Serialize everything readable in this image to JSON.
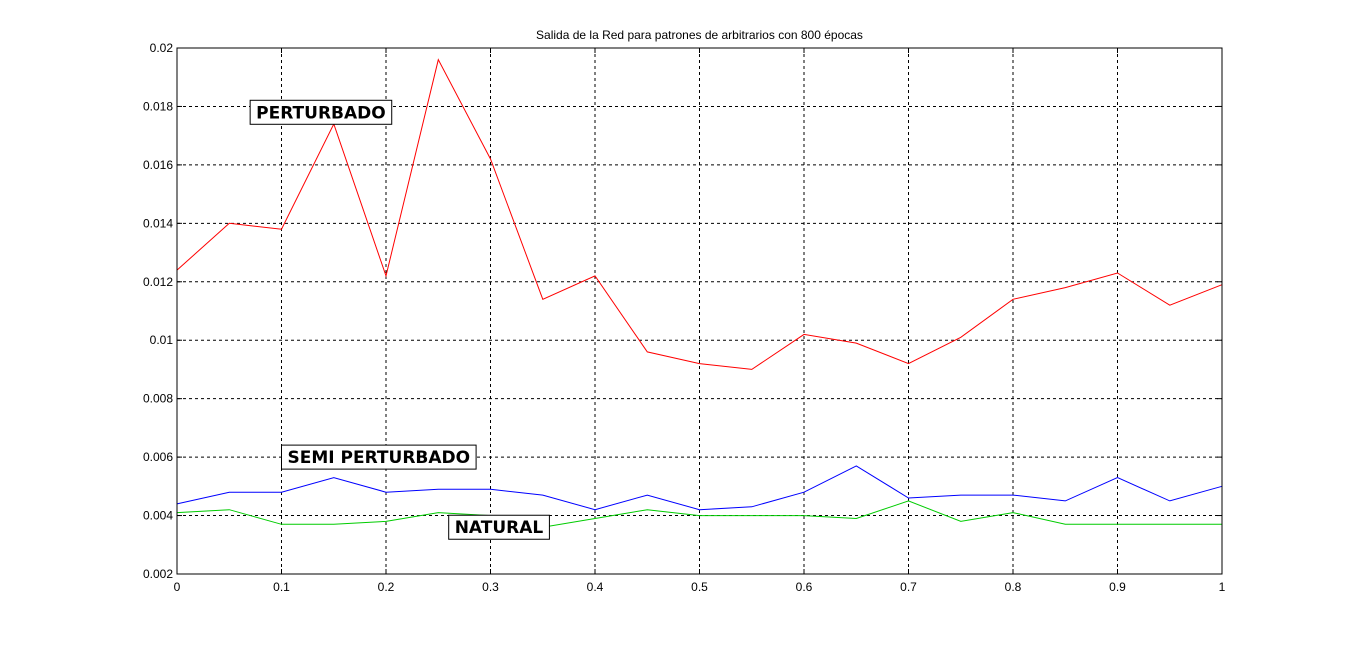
{
  "chart_data": {
    "type": "line",
    "title": "Salida de la Red para patrones de arbitrarios con 800 épocas",
    "xlabel": "",
    "ylabel": "",
    "xlim": [
      0,
      1
    ],
    "ylim": [
      0.002,
      0.02
    ],
    "grid": true,
    "x": [
      0,
      0.05,
      0.1,
      0.15,
      0.2,
      0.25,
      0.3,
      0.35,
      0.4,
      0.45,
      0.5,
      0.55,
      0.6,
      0.65,
      0.7,
      0.75,
      0.8,
      0.85,
      0.9,
      0.95,
      1.0
    ],
    "xticks": [
      "0",
      "0.1",
      "0.2",
      "0.3",
      "0.4",
      "0.5",
      "0.6",
      "0.7",
      "0.8",
      "0.9",
      "1"
    ],
    "yticks": [
      "0.002",
      "0.004",
      "0.006",
      "0.008",
      "0.01",
      "0.012",
      "0.014",
      "0.016",
      "0.018",
      "0.02"
    ],
    "series": [
      {
        "name": "PERTURBADO",
        "color": "#ff0000",
        "values": [
          0.0124,
          0.014,
          0.0138,
          0.0174,
          0.0122,
          0.0196,
          0.0162,
          0.0114,
          0.0122,
          0.0096,
          0.0092,
          0.009,
          0.0102,
          0.0099,
          0.0092,
          0.0101,
          0.0114,
          0.0118,
          0.0123,
          0.0112,
          0.0119
        ]
      },
      {
        "name": "SEMI PERTURBADO",
        "color": "#0000ff",
        "values": [
          0.0044,
          0.0048,
          0.0048,
          0.0053,
          0.0048,
          0.0049,
          0.0049,
          0.0047,
          0.0042,
          0.0047,
          0.0042,
          0.0043,
          0.0048,
          0.0057,
          0.0046,
          0.0047,
          0.0047,
          0.0045,
          0.0053,
          0.0045,
          0.005
        ]
      },
      {
        "name": "NATURAL",
        "color": "#00cc00",
        "values": [
          0.0041,
          0.0042,
          0.0037,
          0.0037,
          0.0038,
          0.0041,
          0.004,
          0.0036,
          0.0039,
          0.0042,
          0.004,
          0.004,
          0.004,
          0.0039,
          0.0045,
          0.0038,
          0.0041,
          0.0037,
          0.0037,
          0.0037,
          0.0037
        ]
      }
    ],
    "annotations": [
      {
        "text": "PERTURBADO",
        "x": 0.07,
        "y": 0.0178
      },
      {
        "text": "SEMI PERTURBADO",
        "x": 0.1,
        "y": 0.006
      },
      {
        "text": "NATURAL",
        "x": 0.26,
        "y": 0.0036
      }
    ]
  }
}
